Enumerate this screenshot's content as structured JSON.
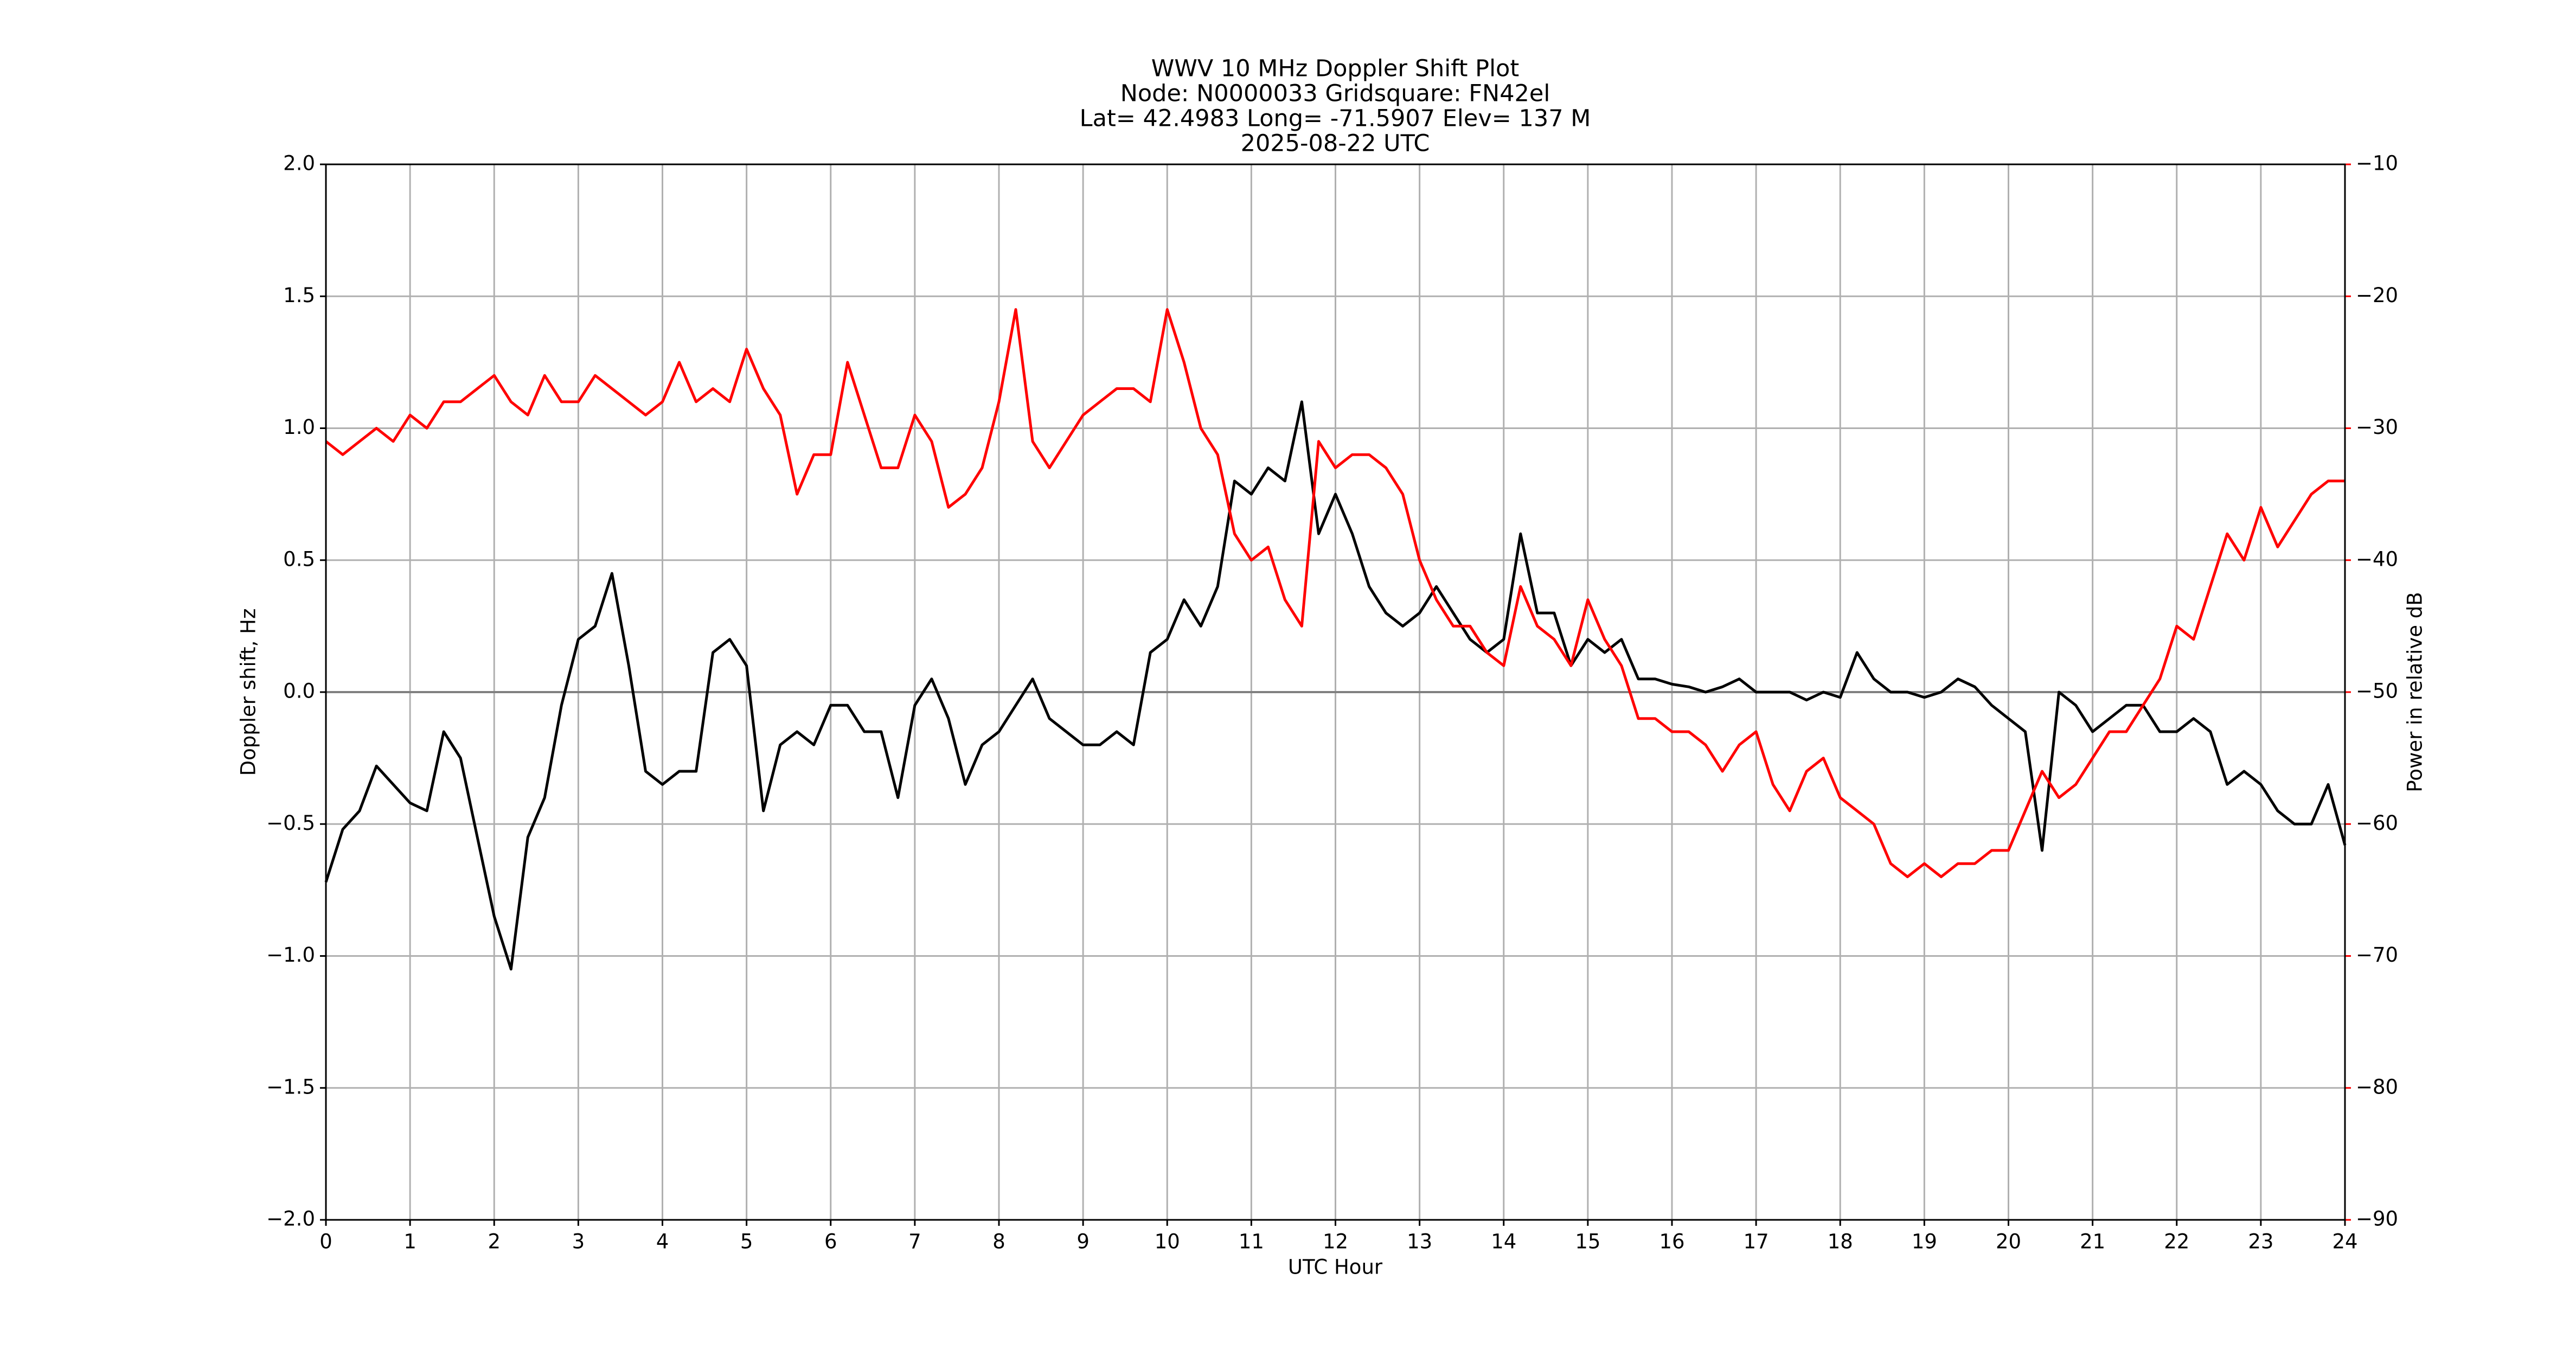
{
  "chart_data": {
    "type": "line",
    "title": [
      "WWV 10 MHz Doppler Shift Plot",
      "Node:  N0000033     Gridsquare:  FN42el",
      "Lat= 42.4983    Long= -71.5907    Elev= 137 M",
      "2025-08-22  UTC"
    ],
    "xlabel": "UTC Hour",
    "ylabel": "Doppler shift, Hz",
    "y2label": "Power in relative dB",
    "xlim": [
      0,
      24
    ],
    "xticks": [
      0,
      1,
      2,
      3,
      4,
      5,
      6,
      7,
      8,
      9,
      10,
      11,
      12,
      13,
      14,
      15,
      16,
      17,
      18,
      19,
      20,
      21,
      22,
      23,
      24
    ],
    "ylim": [
      -2,
      2
    ],
    "yticks": [
      {
        "value": -2,
        "label": "−2.0"
      },
      {
        "value": -1.5,
        "label": "−1.5"
      },
      {
        "value": -1,
        "label": "−1.0"
      },
      {
        "value": -0.5,
        "label": "−0.5"
      },
      {
        "value": 0,
        "label": "0.0"
      },
      {
        "value": 0.5,
        "label": "0.5"
      },
      {
        "value": 1,
        "label": "1.0"
      },
      {
        "value": 1.5,
        "label": "1.5"
      },
      {
        "value": 2,
        "label": "2.0"
      }
    ],
    "y2lim": [
      -90,
      -10
    ],
    "y2ticks": [
      {
        "value": -90,
        "label": "−90"
      },
      {
        "value": -80,
        "label": "−80"
      },
      {
        "value": -70,
        "label": "−70"
      },
      {
        "value": -60,
        "label": "−60"
      },
      {
        "value": -50,
        "label": "−50"
      },
      {
        "value": -40,
        "label": "−40"
      },
      {
        "value": -30,
        "label": "−30"
      },
      {
        "value": -20,
        "label": "−20"
      },
      {
        "value": -10,
        "label": "−10"
      }
    ],
    "y2color": "#ff0000",
    "grid": true,
    "x": [
      0,
      0.2,
      0.4,
      0.6,
      0.8,
      1,
      1.2,
      1.4,
      1.6,
      1.8,
      2,
      2.2,
      2.4,
      2.6,
      2.8,
      3,
      3.2,
      3.4,
      3.6,
      3.8,
      4,
      4.2,
      4.4,
      4.6,
      4.8,
      5,
      5.2,
      5.4,
      5.6,
      5.8,
      6,
      6.2,
      6.4,
      6.6,
      6.8,
      7,
      7.2,
      7.4,
      7.6,
      7.8,
      8,
      8.2,
      8.4,
      8.6,
      8.8,
      9,
      9.2,
      9.4,
      9.6,
      9.8,
      10,
      10.2,
      10.4,
      10.6,
      10.8,
      11,
      11.2,
      11.4,
      11.6,
      11.8,
      12,
      12.2,
      12.4,
      12.6,
      12.8,
      13,
      13.2,
      13.4,
      13.6,
      13.8,
      14,
      14.2,
      14.4,
      14.6,
      14.8,
      15,
      15.2,
      15.4,
      15.6,
      15.8,
      16,
      16.2,
      16.4,
      16.6,
      16.8,
      17,
      17.2,
      17.4,
      17.6,
      17.8,
      18,
      18.2,
      18.4,
      18.6,
      18.8,
      19,
      19.2,
      19.4,
      19.6,
      19.8,
      20,
      20.2,
      20.4,
      20.6,
      20.8,
      21,
      21.2,
      21.4,
      21.6,
      21.8,
      22,
      22.2,
      22.4,
      22.6,
      22.8,
      23,
      23.2,
      23.4,
      23.6,
      23.8,
      24
    ],
    "series": [
      {
        "color": "#000000",
        "axis": "y",
        "values": [
          -0.72,
          -0.52,
          -0.45,
          -0.28,
          -0.35,
          -0.42,
          -0.45,
          -0.15,
          -0.25,
          -0.55,
          -0.85,
          -1.05,
          -0.55,
          -0.4,
          -0.05,
          0.2,
          0.25,
          0.45,
          0.1,
          -0.3,
          -0.35,
          -0.3,
          -0.3,
          0.15,
          0.2,
          0.1,
          -0.45,
          -0.2,
          -0.15,
          -0.2,
          -0.05,
          -0.05,
          -0.15,
          -0.15,
          -0.4,
          -0.05,
          0.05,
          -0.1,
          -0.35,
          -0.2,
          -0.15,
          -0.05,
          0.05,
          -0.1,
          -0.15,
          -0.2,
          -0.2,
          -0.15,
          -0.2,
          0.15,
          0.2,
          0.35,
          0.25,
          0.4,
          0.8,
          0.75,
          0.85,
          0.8,
          1.1,
          0.6,
          0.75,
          0.6,
          0.4,
          0.3,
          0.25,
          0.3,
          0.4,
          0.3,
          0.2,
          0.15,
          0.2,
          0.6,
          0.3,
          0.3,
          0.1,
          0.2,
          0.15,
          0.2,
          0.05,
          0.05,
          0.03,
          0.02,
          0,
          0.02,
          0.05,
          0,
          0,
          0,
          -0.03,
          0,
          -0.02,
          0.15,
          0.05,
          0,
          0,
          -0.02,
          0,
          0.05,
          0.02,
          -0.05,
          -0.1,
          -0.15,
          -0.6,
          0,
          -0.05,
          -0.15,
          -0.1,
          -0.05,
          -0.05,
          -0.15,
          -0.15,
          -0.1,
          -0.15,
          -0.35,
          -0.3,
          -0.35,
          -0.45,
          -0.5,
          -0.5,
          -0.35,
          -0.58
        ]
      },
      {
        "color": "#ff0000",
        "axis": "y2",
        "values": [
          -31,
          -32,
          -31,
          -30,
          -31,
          -29,
          -30,
          -28,
          -28,
          -27,
          -26,
          -28,
          -29,
          -26,
          -28,
          -28,
          -26,
          -27,
          -28,
          -29,
          -28,
          -25,
          -28,
          -27,
          -28,
          -24,
          -27,
          -29,
          -35,
          -32,
          -32,
          -25,
          -29,
          -33,
          -33,
          -29,
          -31,
          -36,
          -35,
          -33,
          -28,
          -21,
          -31,
          -33,
          -31,
          -29,
          -28,
          -27,
          -27,
          -28,
          -21,
          -25,
          -30,
          -32,
          -38,
          -40,
          -39,
          -43,
          -45,
          -31,
          -33,
          -32,
          -32,
          -33,
          -35,
          -40,
          -43,
          -45,
          -45,
          -47,
          -48,
          -42,
          -45,
          -46,
          -48,
          -43,
          -46,
          -48,
          -52,
          -52,
          -53,
          -53,
          -54,
          -56,
          -54,
          -53,
          -57,
          -59,
          -56,
          -55,
          -58,
          -59,
          -60,
          -63,
          -64,
          -63,
          -64,
          -63,
          -63,
          -62,
          -62,
          -59,
          -56,
          -58,
          -57,
          -55,
          -53,
          -53,
          -51,
          -49,
          -45,
          -46,
          -42,
          -38,
          -40,
          -36,
          -39,
          -37,
          -35,
          -34,
          -34
        ]
      }
    ]
  }
}
